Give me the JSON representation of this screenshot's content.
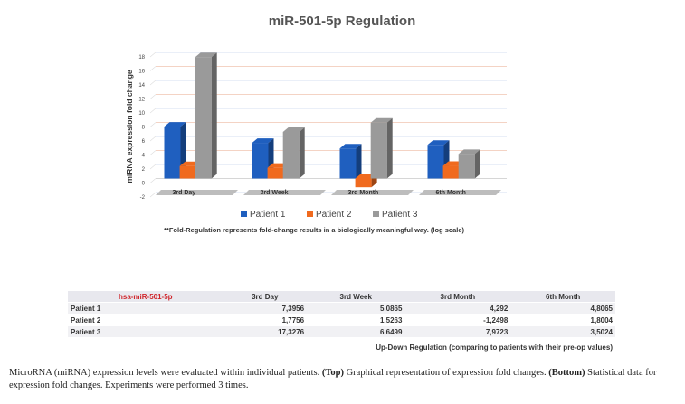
{
  "chart_data": {
    "type": "bar",
    "title": "miR-501-5p Regulation",
    "ylabel": "miRNA expression fold change",
    "xlabel": "",
    "ylim": [
      -2,
      18
    ],
    "yticks": [
      -2,
      0,
      2,
      4,
      6,
      8,
      10,
      12,
      14,
      16,
      18
    ],
    "categories": [
      "3rd Day",
      "3rd Week",
      "3rd Month",
      "6th Month"
    ],
    "series": [
      {
        "name": "Patient 1",
        "color": "#1f5fbf",
        "values": [
          7.3956,
          5.0865,
          4.292,
          4.8065
        ]
      },
      {
        "name": "Patient 2",
        "color": "#f06a1e",
        "values": [
          1.7756,
          1.5263,
          -1.2498,
          1.8004
        ]
      },
      {
        "name": "Patient 3",
        "color": "#9a9a9a",
        "values": [
          17.3276,
          6.6499,
          7.9723,
          3.5024
        ]
      }
    ],
    "legend": "bottom",
    "grid": true,
    "note": "**Fold-Regulation represents fold-change results in a biologically meaningful way. (log scale)"
  },
  "table": {
    "key": "hsa-miR-501-5p",
    "headers": [
      "3rd Day",
      "3rd Week",
      "3rd Month",
      "6th Month"
    ],
    "rows": [
      {
        "label": "Patient 1",
        "values": [
          "7,3956",
          "5,0865",
          "4,292",
          "4,8065"
        ]
      },
      {
        "label": "Patient 2",
        "values": [
          "1,7756",
          "1,5263",
          "-1,2498",
          "1,8004"
        ]
      },
      {
        "label": "Patient 3",
        "values": [
          "17,3276",
          "6,6499",
          "7,9723",
          "3,5024"
        ]
      }
    ],
    "note": "Up-Down Regulation (comparing to patients with their pre-op values)"
  },
  "caption": {
    "text1": "MicroRNA (miRNA) expression levels were evaluated within individual patients. ",
    "bold1": "(Top)",
    "text2": " Graphical representation of expression fold changes. ",
    "bold2": "(Bottom)",
    "text3": " Statistical data for expression fold changes. Experiments were performed 3 times."
  }
}
